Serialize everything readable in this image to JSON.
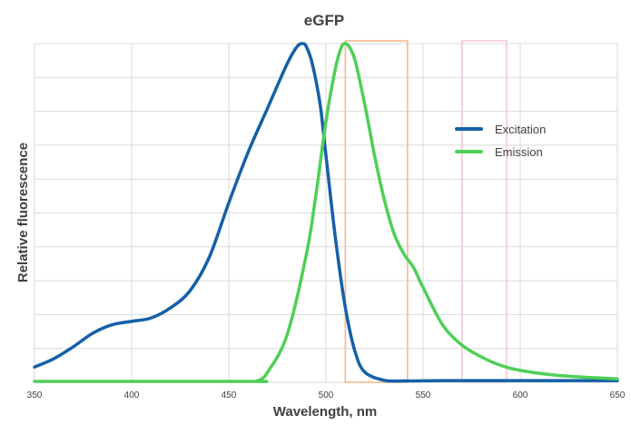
{
  "colors": {
    "excitation": "#1560a8",
    "emission": "#4fcf57",
    "grid": "#d9d9d9",
    "band_1": "#f5b98e",
    "band_2": "#f6c9cf"
  },
  "chart_data": {
    "type": "line",
    "title": "eGFP",
    "xlabel": "Wavelength, nm",
    "ylabel": "Relative fluorescence",
    "xlim": [
      350,
      650
    ],
    "ylim": [
      0,
      1
    ],
    "x_ticks": [
      "350",
      "400",
      "450",
      "500",
      "550",
      "600",
      "650"
    ],
    "y_ticks_labeled": false,
    "grid": true,
    "legend_position": "right-middle",
    "bands": [
      {
        "from": 510,
        "to": 542,
        "color": "#f5b98e"
      },
      {
        "from": 570,
        "to": 593,
        "color": "#f6c9cf"
      }
    ],
    "series": [
      {
        "name": "Excitation",
        "color": "#1560a8",
        "x": [
          350,
          360,
          370,
          380,
          390,
          400,
          410,
          420,
          430,
          440,
          450,
          460,
          470,
          480,
          485,
          488,
          490,
          493,
          497,
          500,
          505,
          510,
          515,
          520,
          530,
          540,
          560,
          600,
          650
        ],
        "y": [
          0.045,
          0.07,
          0.105,
          0.145,
          0.17,
          0.18,
          0.19,
          0.22,
          0.27,
          0.37,
          0.53,
          0.68,
          0.81,
          0.94,
          0.99,
          1.0,
          0.99,
          0.94,
          0.82,
          0.67,
          0.42,
          0.22,
          0.09,
          0.03,
          0.006,
          0.004,
          0.005,
          0.005,
          0.005
        ]
      },
      {
        "name": "Emission",
        "color": "#4fcf57",
        "x": [
          350,
          460,
          465,
          470,
          480,
          490,
          495,
          500,
          505,
          508,
          510,
          512,
          515,
          520,
          525,
          530,
          535,
          540,
          545,
          550,
          560,
          570,
          580,
          590,
          600,
          620,
          650
        ],
        "y": [
          0,
          0,
          0.005,
          0.03,
          0.14,
          0.38,
          0.56,
          0.77,
          0.93,
          0.99,
          1.0,
          0.99,
          0.95,
          0.82,
          0.67,
          0.54,
          0.44,
          0.38,
          0.34,
          0.28,
          0.17,
          0.11,
          0.075,
          0.05,
          0.035,
          0.02,
          0.01
        ]
      }
    ]
  }
}
